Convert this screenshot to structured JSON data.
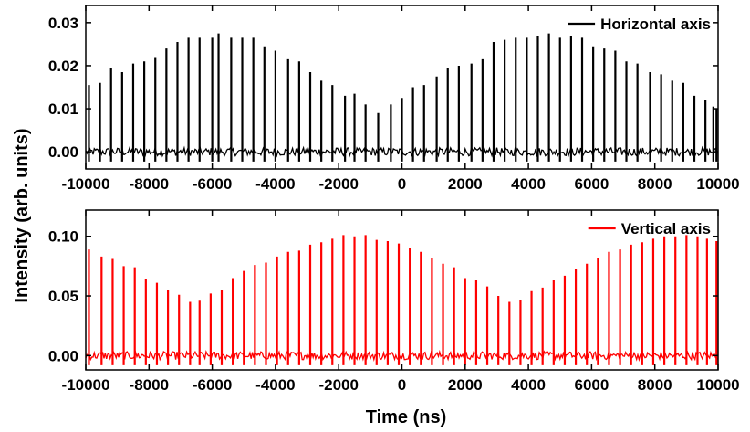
{
  "chart_data": [
    {
      "type": "line",
      "panel": "top",
      "xlim": [
        -10000,
        10000
      ],
      "ylim": [
        -0.004,
        0.034
      ],
      "x_ticks": [
        -10000,
        -8000,
        -6000,
        -4000,
        -2000,
        0,
        2000,
        4000,
        6000,
        8000,
        10000
      ],
      "y_ticks": [
        0.0,
        0.01,
        0.02,
        0.03
      ],
      "y_tick_labels": [
        "0.00",
        "0.01",
        "0.02",
        "0.03"
      ],
      "grid": false,
      "legend_position": "top-right",
      "series": [
        {
          "name": "Horizontal axis",
          "color": "#000000",
          "pulses": [
            {
              "x": -9900,
              "y": 0.0155
            },
            {
              "x": -9550,
              "y": 0.016
            },
            {
              "x": -9200,
              "y": 0.0195
            },
            {
              "x": -8850,
              "y": 0.0185
            },
            {
              "x": -8500,
              "y": 0.0205
            },
            {
              "x": -8150,
              "y": 0.021
            },
            {
              "x": -7800,
              "y": 0.022
            },
            {
              "x": -7450,
              "y": 0.024
            },
            {
              "x": -7100,
              "y": 0.0255
            },
            {
              "x": -6750,
              "y": 0.0265
            },
            {
              "x": -6400,
              "y": 0.0265
            },
            {
              "x": -6000,
              "y": 0.0265
            },
            {
              "x": -5800,
              "y": 0.0275
            },
            {
              "x": -5400,
              "y": 0.0265
            },
            {
              "x": -5050,
              "y": 0.0265
            },
            {
              "x": -4700,
              "y": 0.0265
            },
            {
              "x": -4350,
              "y": 0.0245
            },
            {
              "x": -4000,
              "y": 0.0235
            },
            {
              "x": -3600,
              "y": 0.0215
            },
            {
              "x": -3250,
              "y": 0.021
            },
            {
              "x": -2900,
              "y": 0.0185
            },
            {
              "x": -2550,
              "y": 0.0165
            },
            {
              "x": -2200,
              "y": 0.0155
            },
            {
              "x": -1800,
              "y": 0.013
            },
            {
              "x": -1500,
              "y": 0.0135
            },
            {
              "x": -1150,
              "y": 0.011
            },
            {
              "x": -750,
              "y": 0.009
            },
            {
              "x": -350,
              "y": 0.011
            },
            {
              "x": 0,
              "y": 0.0125
            },
            {
              "x": 350,
              "y": 0.015
            },
            {
              "x": 700,
              "y": 0.0155
            },
            {
              "x": 1100,
              "y": 0.0175
            },
            {
              "x": 1450,
              "y": 0.0195
            },
            {
              "x": 1800,
              "y": 0.02
            },
            {
              "x": 2200,
              "y": 0.0205
            },
            {
              "x": 2550,
              "y": 0.0215
            },
            {
              "x": 2900,
              "y": 0.0255
            },
            {
              "x": 3250,
              "y": 0.026
            },
            {
              "x": 3600,
              "y": 0.0265
            },
            {
              "x": 3950,
              "y": 0.0265
            },
            {
              "x": 4300,
              "y": 0.027
            },
            {
              "x": 4650,
              "y": 0.0275
            },
            {
              "x": 5000,
              "y": 0.0265
            },
            {
              "x": 5350,
              "y": 0.027
            },
            {
              "x": 5700,
              "y": 0.0265
            },
            {
              "x": 6050,
              "y": 0.0245
            },
            {
              "x": 6400,
              "y": 0.024
            },
            {
              "x": 6750,
              "y": 0.0235
            },
            {
              "x": 7100,
              "y": 0.021
            },
            {
              "x": 7450,
              "y": 0.0205
            },
            {
              "x": 7850,
              "y": 0.0185
            },
            {
              "x": 8200,
              "y": 0.018
            },
            {
              "x": 8550,
              "y": 0.0165
            },
            {
              "x": 8900,
              "y": 0.016
            },
            {
              "x": 9250,
              "y": 0.013
            },
            {
              "x": 9600,
              "y": 0.012
            },
            {
              "x": 9850,
              "y": 0.0105
            },
            {
              "x": 9950,
              "y": 0.01
            }
          ]
        }
      ]
    },
    {
      "type": "line",
      "panel": "bottom",
      "xlim": [
        -10000,
        10000
      ],
      "ylim": [
        -0.012,
        0.122
      ],
      "x_ticks": [
        -10000,
        -8000,
        -6000,
        -4000,
        -2000,
        0,
        2000,
        4000,
        6000,
        8000,
        10000
      ],
      "y_ticks": [
        0.0,
        0.05,
        0.1
      ],
      "y_tick_labels": [
        "0.00",
        "0.05",
        "0.10"
      ],
      "grid": false,
      "legend_position": "top-right",
      "series": [
        {
          "name": "Vertical axis",
          "color": "#ff0000",
          "pulses": [
            {
              "x": -9900,
              "y": 0.089
            },
            {
              "x": -9500,
              "y": 0.083
            },
            {
              "x": -9150,
              "y": 0.081
            },
            {
              "x": -8800,
              "y": 0.075
            },
            {
              "x": -8450,
              "y": 0.074
            },
            {
              "x": -8100,
              "y": 0.064
            },
            {
              "x": -7750,
              "y": 0.061
            },
            {
              "x": -7400,
              "y": 0.055
            },
            {
              "x": -7050,
              "y": 0.051
            },
            {
              "x": -6700,
              "y": 0.045
            },
            {
              "x": -6400,
              "y": 0.046
            },
            {
              "x": -6050,
              "y": 0.052
            },
            {
              "x": -5700,
              "y": 0.055
            },
            {
              "x": -5350,
              "y": 0.065
            },
            {
              "x": -5000,
              "y": 0.071
            },
            {
              "x": -4650,
              "y": 0.076
            },
            {
              "x": -4300,
              "y": 0.078
            },
            {
              "x": -3950,
              "y": 0.083
            },
            {
              "x": -3600,
              "y": 0.087
            },
            {
              "x": -3250,
              "y": 0.088
            },
            {
              "x": -2900,
              "y": 0.093
            },
            {
              "x": -2550,
              "y": 0.095
            },
            {
              "x": -2200,
              "y": 0.098
            },
            {
              "x": -1850,
              "y": 0.101
            },
            {
              "x": -1500,
              "y": 0.1
            },
            {
              "x": -1150,
              "y": 0.101
            },
            {
              "x": -800,
              "y": 0.097
            },
            {
              "x": -450,
              "y": 0.096
            },
            {
              "x": -100,
              "y": 0.094
            },
            {
              "x": 250,
              "y": 0.09
            },
            {
              "x": 600,
              "y": 0.087
            },
            {
              "x": 950,
              "y": 0.082
            },
            {
              "x": 1300,
              "y": 0.077
            },
            {
              "x": 1650,
              "y": 0.074
            },
            {
              "x": 2000,
              "y": 0.065
            },
            {
              "x": 2350,
              "y": 0.063
            },
            {
              "x": 2700,
              "y": 0.058
            },
            {
              "x": 3050,
              "y": 0.05
            },
            {
              "x": 3400,
              "y": 0.045
            },
            {
              "x": 3750,
              "y": 0.047
            },
            {
              "x": 4100,
              "y": 0.054
            },
            {
              "x": 4450,
              "y": 0.057
            },
            {
              "x": 4800,
              "y": 0.063
            },
            {
              "x": 5150,
              "y": 0.067
            },
            {
              "x": 5500,
              "y": 0.073
            },
            {
              "x": 5850,
              "y": 0.077
            },
            {
              "x": 6200,
              "y": 0.082
            },
            {
              "x": 6550,
              "y": 0.087
            },
            {
              "x": 6900,
              "y": 0.089
            },
            {
              "x": 7250,
              "y": 0.093
            },
            {
              "x": 7600,
              "y": 0.095
            },
            {
              "x": 7950,
              "y": 0.098
            },
            {
              "x": 8300,
              "y": 0.1
            },
            {
              "x": 8650,
              "y": 0.1
            },
            {
              "x": 9000,
              "y": 0.101
            },
            {
              "x": 9350,
              "y": 0.1
            },
            {
              "x": 9650,
              "y": 0.098
            },
            {
              "x": 9950,
              "y": 0.096
            }
          ]
        }
      ]
    }
  ],
  "xlabel": "Time (ns)",
  "ylabel": "Intensity (arb. units)"
}
